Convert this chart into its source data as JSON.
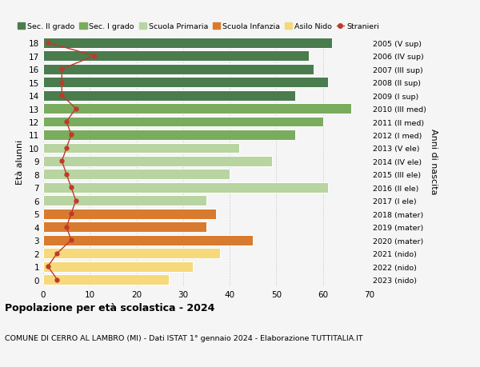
{
  "ages": [
    18,
    17,
    16,
    15,
    14,
    13,
    12,
    11,
    10,
    9,
    8,
    7,
    6,
    5,
    4,
    3,
    2,
    1,
    0
  ],
  "bar_values": [
    62,
    57,
    58,
    61,
    54,
    66,
    60,
    54,
    42,
    49,
    40,
    61,
    35,
    37,
    35,
    45,
    38,
    32,
    27
  ],
  "stranieri": [
    1,
    11,
    4,
    4,
    4,
    7,
    5,
    6,
    5,
    4,
    5,
    6,
    7,
    6,
    5,
    6,
    3,
    1,
    3
  ],
  "right_labels": [
    "2005 (V sup)",
    "2006 (IV sup)",
    "2007 (III sup)",
    "2008 (II sup)",
    "2009 (I sup)",
    "2010 (III med)",
    "2011 (II med)",
    "2012 (I med)",
    "2013 (V ele)",
    "2014 (IV ele)",
    "2015 (III ele)",
    "2016 (II ele)",
    "2017 (I ele)",
    "2018 (mater)",
    "2019 (mater)",
    "2020 (mater)",
    "2021 (nido)",
    "2022 (nido)",
    "2023 (nido)"
  ],
  "bar_colors": [
    "#4a7c4e",
    "#4a7c4e",
    "#4a7c4e",
    "#4a7c4e",
    "#4a7c4e",
    "#7aac5e",
    "#7aac5e",
    "#7aac5e",
    "#b8d4a0",
    "#b8d4a0",
    "#b8d4a0",
    "#b8d4a0",
    "#b8d4a0",
    "#d97b2e",
    "#d97b2e",
    "#d97b2e",
    "#f5d97a",
    "#f5d97a",
    "#f5d97a"
  ],
  "legend_labels": [
    "Sec. II grado",
    "Sec. I grado",
    "Scuola Primaria",
    "Scuola Infanzia",
    "Asilo Nido",
    "Stranieri"
  ],
  "legend_colors": [
    "#4a7c4e",
    "#7aac5e",
    "#b8d4a0",
    "#d97b2e",
    "#f5d97a",
    "#c0392b"
  ],
  "stranieri_color": "#c0392b",
  "ylabel": "Età alunni",
  "right_ylabel": "Anni di nascita",
  "title": "Popolazione per età scolastica - 2024",
  "subtitle": "COMUNE DI CERRO AL LAMBRO (MI) - Dati ISTAT 1° gennaio 2024 - Elaborazione TUTTITALIA.IT",
  "xlim": [
    0,
    70
  ],
  "xticks": [
    0,
    10,
    20,
    30,
    40,
    50,
    60,
    70
  ],
  "background_color": "#f5f5f5",
  "grid_color": "#cccccc"
}
